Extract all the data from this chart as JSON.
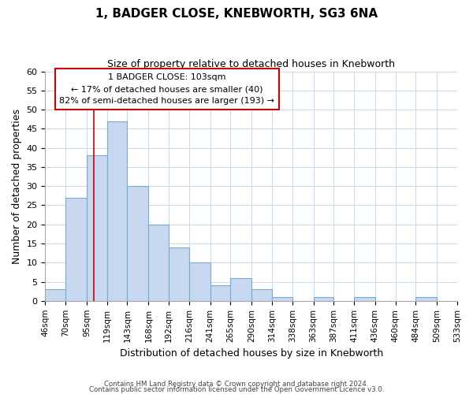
{
  "title": "1, BADGER CLOSE, KNEBWORTH, SG3 6NA",
  "subtitle": "Size of property relative to detached houses in Knebworth",
  "xlabel": "Distribution of detached houses by size in Knebworth",
  "ylabel": "Number of detached properties",
  "footer_line1": "Contains HM Land Registry data © Crown copyright and database right 2024.",
  "footer_line2": "Contains public sector information licensed under the Open Government Licence v3.0.",
  "bar_labels": [
    "46sqm",
    "70sqm",
    "95sqm",
    "119sqm",
    "143sqm",
    "168sqm",
    "192sqm",
    "216sqm",
    "241sqm",
    "265sqm",
    "290sqm",
    "314sqm",
    "338sqm",
    "363sqm",
    "387sqm",
    "411sqm",
    "436sqm",
    "460sqm",
    "484sqm",
    "509sqm",
    "533sqm"
  ],
  "bar_values": [
    3,
    27,
    38,
    47,
    30,
    20,
    14,
    10,
    4,
    6,
    3,
    1,
    0,
    1,
    0,
    1,
    0,
    0,
    1,
    0
  ],
  "bar_edges": [
    46,
    70,
    95,
    119,
    143,
    168,
    192,
    216,
    241,
    265,
    290,
    314,
    338,
    363,
    387,
    411,
    436,
    460,
    484,
    509,
    533
  ],
  "bar_color": "#c8d8f0",
  "bar_edge_color": "#7aaad0",
  "ylim": [
    0,
    60
  ],
  "yticks": [
    0,
    5,
    10,
    15,
    20,
    25,
    30,
    35,
    40,
    45,
    50,
    55,
    60
  ],
  "vline_x": 103,
  "vline_color": "#cc0000",
  "annotation_title": "1 BADGER CLOSE: 103sqm",
  "annotation_line1": "← 17% of detached houses are smaller (40)",
  "annotation_line2": "82% of semi-detached houses are larger (193) →",
  "annotation_box_color": "#cc0000",
  "background_color": "#ffffff",
  "grid_color": "#c8d8ee"
}
